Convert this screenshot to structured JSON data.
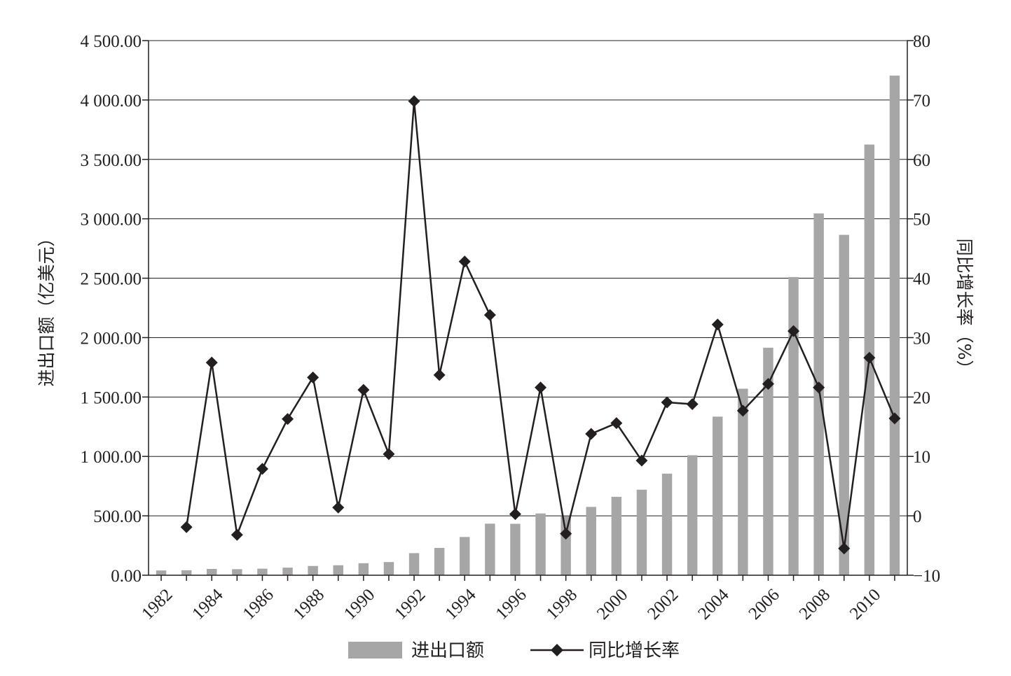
{
  "chart_data": {
    "type": "bar+line",
    "title": "",
    "x": [
      1982,
      1983,
      1984,
      1985,
      1986,
      1987,
      1988,
      1989,
      1990,
      1991,
      1992,
      1993,
      1994,
      1995,
      1996,
      1997,
      1998,
      1999,
      2000,
      2001,
      2002,
      2003,
      2004,
      2005,
      2006,
      2007,
      2008,
      2009,
      2010,
      2011
    ],
    "x_tick_labels": [
      "1982",
      "1984",
      "1986",
      "1988",
      "1990",
      "1992",
      "1994",
      "1996",
      "1998",
      "2000",
      "2002",
      "2004",
      "2006",
      "2008",
      "2010"
    ],
    "series": [
      {
        "name": "进出口额",
        "type": "bar",
        "axis": "left",
        "color": "#a6a6a6",
        "values": [
          40,
          42,
          53,
          51,
          55,
          64,
          78,
          84,
          101,
          111,
          186,
          230,
          322,
          434,
          433,
          520,
          495,
          575,
          660,
          720,
          855,
          1010,
          1335,
          1570,
          1915,
          2510,
          3045,
          2865,
          3625,
          4205
        ]
      },
      {
        "name": "同比增长率",
        "type": "line",
        "axis": "right",
        "color": "#231f20",
        "marker": "diamond",
        "values": [
          null,
          -1.9,
          25.8,
          -3.2,
          7.9,
          16.3,
          23.3,
          1.4,
          21.2,
          10.4,
          69.8,
          23.7,
          42.8,
          33.8,
          0.3,
          21.6,
          -3.0,
          13.8,
          15.6,
          9.3,
          19.1,
          18.8,
          32.2,
          17.7,
          22.2,
          31.1,
          21.6,
          -5.5,
          26.6,
          16.4
        ]
      }
    ],
    "y_left": {
      "label": "进出口额（亿美元）",
      "ylim": [
        0,
        4500
      ],
      "ticks": [
        0,
        500,
        1000,
        1500,
        2000,
        2500,
        3000,
        3500,
        4000,
        4500
      ],
      "tick_labels": [
        "0.00",
        "500.00",
        "1 000.00",
        "1 500.00",
        "2 000.00",
        "2 500.00",
        "3 000.00",
        "3 500.00",
        "4 000.00",
        "4 500.00"
      ]
    },
    "y_right": {
      "label": "同比增长率（%）",
      "ylim": [
        -10,
        80
      ],
      "ticks": [
        -10,
        0,
        10,
        20,
        30,
        40,
        50,
        60,
        70,
        80
      ],
      "tick_labels": [
        "−10",
        "0",
        "10",
        "20",
        "30",
        "40",
        "50",
        "60",
        "70",
        "80"
      ]
    },
    "grid": true,
    "legend": {
      "position": "bottom-center",
      "items": [
        "进出口额",
        "同比增长率"
      ]
    }
  }
}
